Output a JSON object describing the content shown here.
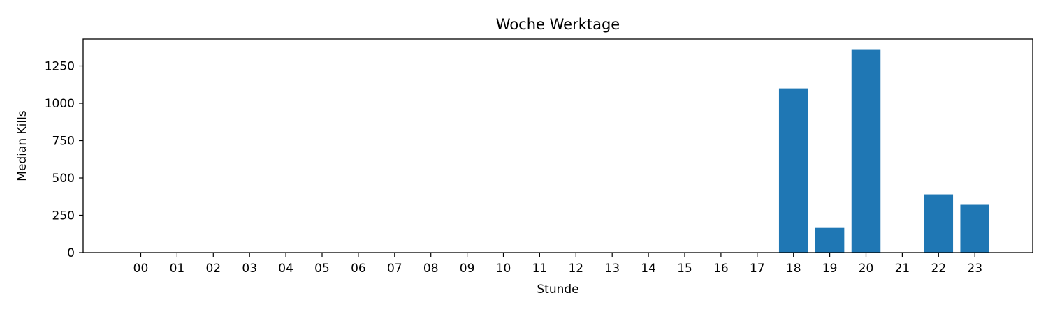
{
  "chart_data": {
    "type": "bar",
    "title": "Woche Werktage",
    "xlabel": "Stunde",
    "ylabel": "Median Kills",
    "categories": [
      "00",
      "01",
      "02",
      "03",
      "04",
      "05",
      "06",
      "07",
      "08",
      "09",
      "10",
      "11",
      "12",
      "13",
      "14",
      "15",
      "16",
      "17",
      "18",
      "19",
      "20",
      "21",
      "22",
      "23"
    ],
    "values": [
      0,
      0,
      0,
      0,
      0,
      0,
      0,
      0,
      0,
      0,
      0,
      0,
      0,
      0,
      0,
      0,
      0,
      0,
      1100,
      165,
      1362,
      0,
      390,
      320
    ],
    "ylim": [
      0,
      1430
    ],
    "yticks": [
      0,
      250,
      500,
      750,
      1000,
      1250
    ],
    "grid": false,
    "bar_color": "#1f77b4"
  }
}
